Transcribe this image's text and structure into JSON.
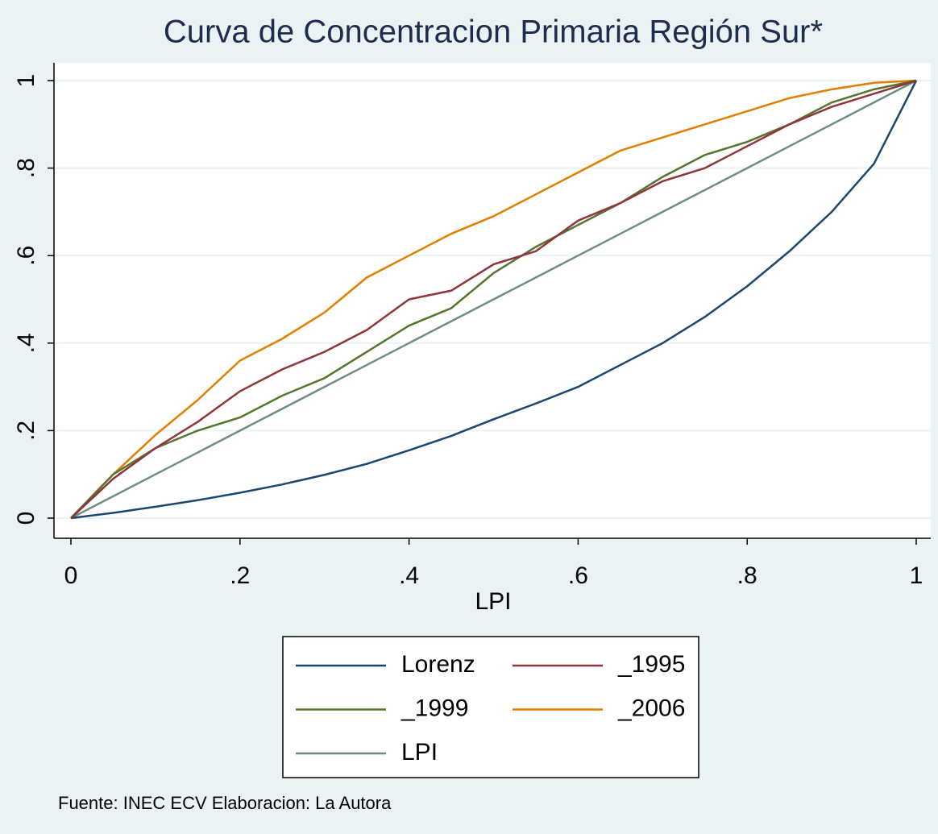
{
  "chart_data": {
    "type": "line",
    "title": "Curva de Concentracion Primaria Región Sur*",
    "x_label": "LPI",
    "note": "Fuente: INEC ECV    Elaboracion: La Autora",
    "x": [
      0,
      0.05,
      0.1,
      0.15,
      0.2,
      0.25,
      0.3,
      0.35,
      0.4,
      0.45,
      0.5,
      0.55,
      0.6,
      0.65,
      0.7,
      0.75,
      0.8,
      0.85,
      0.9,
      0.95,
      1
    ],
    "series": [
      {
        "name": "Lorenz",
        "color": "#1a476f",
        "values": [
          0,
          0.012,
          0.026,
          0.041,
          0.058,
          0.077,
          0.099,
          0.124,
          0.155,
          0.188,
          0.226,
          0.262,
          0.3,
          0.35,
          0.4,
          0.46,
          0.53,
          0.61,
          0.7,
          0.81,
          1
        ]
      },
      {
        "name": "_1995",
        "color": "#90353b",
        "values": [
          0,
          0.09,
          0.16,
          0.22,
          0.29,
          0.34,
          0.38,
          0.43,
          0.5,
          0.52,
          0.58,
          0.61,
          0.68,
          0.72,
          0.77,
          0.8,
          0.85,
          0.9,
          0.94,
          0.97,
          1
        ]
      },
      {
        "name": "_1999",
        "color": "#55752f",
        "values": [
          0,
          0.1,
          0.16,
          0.2,
          0.23,
          0.28,
          0.32,
          0.38,
          0.44,
          0.48,
          0.56,
          0.62,
          0.67,
          0.72,
          0.78,
          0.83,
          0.86,
          0.9,
          0.95,
          0.98,
          1
        ]
      },
      {
        "name": "_2006",
        "color": "#e37e00",
        "values": [
          0,
          0.1,
          0.19,
          0.27,
          0.36,
          0.41,
          0.47,
          0.55,
          0.6,
          0.65,
          0.69,
          0.74,
          0.79,
          0.84,
          0.87,
          0.9,
          0.93,
          0.96,
          0.98,
          0.995,
          1
        ]
      },
      {
        "name": "LPI",
        "color": "#6e8e84",
        "values": [
          0,
          0.05,
          0.1,
          0.15,
          0.2,
          0.25,
          0.3,
          0.35,
          0.4,
          0.45,
          0.5,
          0.55,
          0.6,
          0.65,
          0.7,
          0.75,
          0.8,
          0.85,
          0.9,
          0.95,
          1
        ]
      }
    ],
    "xlim": [
      0,
      1
    ],
    "xticks": [
      0,
      {
        "value": 0.2,
        "label": ".2"
      },
      {
        "value": 0.4,
        "label": ".4"
      },
      {
        "value": 0.6,
        "label": ".6"
      },
      {
        "value": 0.8,
        "label": ".8"
      },
      1
    ],
    "ylim": [
      0,
      1
    ],
    "yticks": [
      0,
      {
        "value": 0.2,
        "label": ".2"
      },
      {
        "value": 0.4,
        "label": ".4"
      },
      {
        "value": 0.6,
        "label": ".6"
      },
      {
        "value": 0.8,
        "label": ".8"
      },
      1
    ],
    "grid": true
  }
}
